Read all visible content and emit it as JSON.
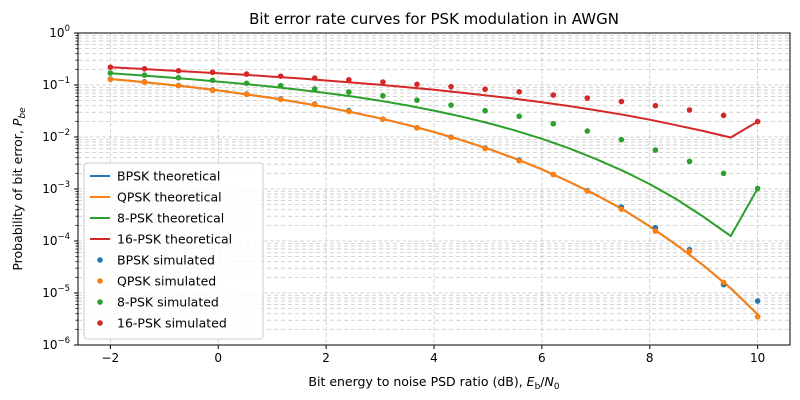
{
  "chart_data": {
    "type": "line",
    "title": "Bit error rate curves for PSK modulation in AWGN",
    "xlabel": "Bit energy to noise PSD ratio (dB), E_b/N_0",
    "xlabel_parts": {
      "prefix": "Bit energy to noise PSD ratio (dB), ",
      "E": "E",
      "b": "b",
      "slash": "/",
      "N": "N",
      "zero": "0"
    },
    "ylabel": "Probability of bit error, P_be",
    "ylabel_parts": {
      "prefix": "Probability of bit error, ",
      "P": "P",
      "sub": "be"
    },
    "xlim": [
      -2.6,
      10.6
    ],
    "ylim": [
      1e-06,
      1
    ],
    "yscale": "log",
    "grid": "both",
    "legend": "lower-left",
    "x_ticks": [
      -2,
      0,
      2,
      4,
      6,
      8,
      10
    ],
    "x_tick_labels": [
      "−2",
      "0",
      "2",
      "4",
      "6",
      "8",
      "10"
    ],
    "y_ticks": [
      -6,
      -5,
      -4,
      -3,
      -2,
      -1,
      0
    ],
    "y_tick_labels": [
      {
        "base": "10",
        "exp": "−6"
      },
      {
        "base": "10",
        "exp": "−5"
      },
      {
        "base": "10",
        "exp": "−4"
      },
      {
        "base": "10",
        "exp": "−3"
      },
      {
        "base": "10",
        "exp": "−2"
      },
      {
        "base": "10",
        "exp": "−1"
      },
      {
        "base": "10",
        "exp": "0"
      }
    ],
    "theory_x": [
      -2,
      -1.5,
      -1,
      -0.5,
      0,
      0.5,
      1,
      1.5,
      2,
      2.5,
      3,
      3.5,
      4,
      4.5,
      5,
      5.5,
      6,
      6.5,
      7,
      7.5,
      8,
      8.5,
      9,
      9.5,
      10
    ],
    "sim_x": [
      -2,
      -1.368,
      -0.737,
      -0.105,
      0.526,
      1.158,
      1.789,
      2.421,
      3.053,
      3.684,
      4.316,
      4.947,
      5.579,
      6.211,
      6.842,
      7.474,
      8.105,
      8.737,
      9.368,
      10
    ],
    "series": [
      {
        "name": "BPSK theoretical",
        "kind": "line",
        "color": "#1f77b4",
        "values": [
          0.1306,
          0.1166,
          0.1038,
          0.0912,
          0.0786,
          0.0664,
          0.0563,
          0.0461,
          0.0375,
          0.0296,
          0.0229,
          0.0172,
          0.0125,
          0.00878,
          0.00595,
          0.00387,
          0.00239,
          0.00139,
          0.000773,
          0.000405,
          0.000191,
          8.38e-05,
          3.36e-05,
          1.23e-05,
          3.87e-06
        ]
      },
      {
        "name": "QPSK theoretical",
        "kind": "line",
        "color": "#ff7f0e",
        "values": [
          0.1306,
          0.1166,
          0.1038,
          0.0912,
          0.0786,
          0.0664,
          0.0563,
          0.0461,
          0.0375,
          0.0296,
          0.0229,
          0.0172,
          0.0125,
          0.00878,
          0.00595,
          0.00387,
          0.00239,
          0.00139,
          0.000773,
          0.000405,
          0.000191,
          8.38e-05,
          3.36e-05,
          1.23e-05,
          3.87e-06
        ]
      },
      {
        "name": "8-PSK theoretical",
        "kind": "line",
        "color": "#2ca02c",
        "values": [
          0.168,
          0.1553,
          0.1418,
          0.1285,
          0.1165,
          0.1045,
          0.0922,
          0.081,
          0.0702,
          0.0598,
          0.05,
          0.0405,
          0.0322,
          0.0248,
          0.0186,
          0.0134,
          0.00925,
          0.00609,
          0.0038,
          0.00224,
          0.00124,
          0.00063,
          0.00029,
          0.000125,
          0.00102
        ]
      },
      {
        "name": "16-PSK theoretical",
        "kind": "line",
        "color": "#d62728",
        "values": [
          0.22,
          0.207,
          0.193,
          0.18,
          0.168,
          0.157,
          0.145,
          0.134,
          0.122,
          0.111,
          0.101,
          0.0905,
          0.0808,
          0.0715,
          0.0625,
          0.0545,
          0.0465,
          0.0395,
          0.0328,
          0.0268,
          0.0215,
          0.0168,
          0.013,
          0.0098,
          0.0198
        ]
      },
      {
        "name": "BPSK simulated",
        "kind": "scatter",
        "color": "#1f77b4",
        "values": [
          0.13,
          0.115,
          0.098,
          0.08,
          0.067,
          0.054,
          0.043,
          0.032,
          0.022,
          0.015,
          0.0099,
          0.0061,
          0.0036,
          0.0019,
          0.00093,
          0.00045,
          0.00018,
          6.8e-05,
          1.45e-05,
          7e-06
        ]
      },
      {
        "name": "QPSK simulated",
        "kind": "scatter",
        "color": "#ff7f0e",
        "values": [
          0.128,
          0.113,
          0.097,
          0.079,
          0.066,
          0.053,
          0.042,
          0.031,
          0.022,
          0.015,
          0.0098,
          0.006,
          0.0035,
          0.0019,
          0.00091,
          0.00041,
          0.000155,
          6.3e-05,
          1.6e-05,
          3.5e-06
        ]
      },
      {
        "name": "8-PSK simulated",
        "kind": "scatter",
        "color": "#2ca02c",
        "values": [
          0.17,
          0.155,
          0.138,
          0.123,
          0.108,
          0.097,
          0.084,
          0.073,
          0.062,
          0.051,
          0.041,
          0.032,
          0.025,
          0.018,
          0.013,
          0.0089,
          0.0056,
          0.0034,
          0.002,
          0.00102
        ]
      },
      {
        "name": "16-PSK simulated",
        "kind": "scatter",
        "color": "#d62728",
        "values": [
          0.22,
          0.205,
          0.188,
          0.175,
          0.162,
          0.148,
          0.136,
          0.126,
          0.114,
          0.103,
          0.093,
          0.083,
          0.074,
          0.064,
          0.056,
          0.048,
          0.04,
          0.033,
          0.026,
          0.0198
        ]
      }
    ]
  }
}
